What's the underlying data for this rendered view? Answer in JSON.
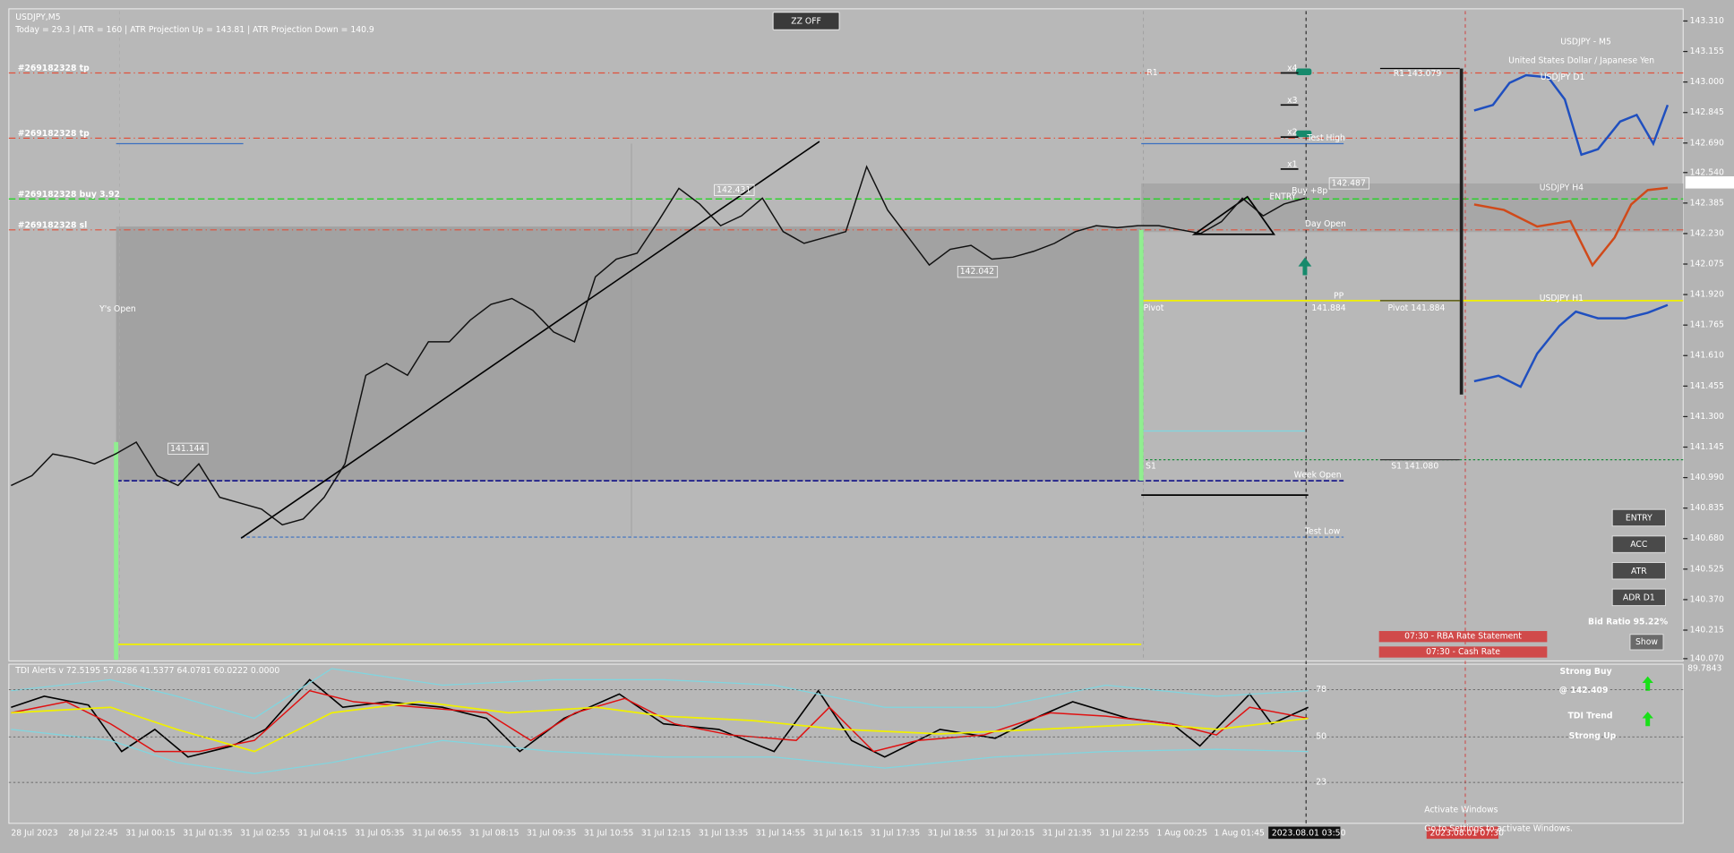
{
  "header": {
    "symbol": "USDJPY,M5",
    "stats": "Today = 29.3   |   ATR = 160   |   ATR Projection Up = 143.81   |   ATR Projection Down = 140.9"
  },
  "buttons": {
    "zz": "ZZ OFF",
    "entry": "ENTRY",
    "acc": "ACC",
    "atr": "ATR",
    "adr": "ADR D1",
    "show": "Show"
  },
  "orders": [
    "#269182328 tp",
    "#269182328 tp",
    "#269182328 buy 3.92",
    "#269182328 sl"
  ],
  "labels": {
    "ys_open": "Y's Open",
    "pivot": "Pivot",
    "s1": "S1",
    "r1": "R1",
    "test_high": "Test High",
    "test_low": "Test Low",
    "week_open": "Week Open",
    "day_open": "Day Open",
    "pp": "PP",
    "pp_value": "141.884",
    "entry": "ENTRY",
    "buy": "Buy +8p",
    "bid_price": "142.487",
    "low_tag": "141.144",
    "high_tag": "142.431",
    "mid_tag": "142.042"
  },
  "multipliers": [
    "x4",
    "x3",
    "x2",
    "x1"
  ],
  "panel": {
    "title": "USDJPY - M5",
    "subtitle": "United States Dollar / Japanese Yen",
    "d1": "USDJPY D1",
    "h4": "USDJPY H4",
    "h1": "USDJPY H1",
    "r1": "R1 143.079",
    "pivot": "Pivot 141.884",
    "s1": "S1 141.080",
    "bid_ratio": "Bid Ratio 95.22%"
  },
  "news": [
    "07:30 - RBA Rate Statement",
    "07:30 - Cash Rate"
  ],
  "indicator": {
    "title": "TDI Alerts v 72.5195 57.0286 41.5377 64.0781 60.0222 0.0000",
    "levels": [
      78,
      50,
      23
    ],
    "axis_top": "89.7843",
    "signal": "Strong Buy",
    "signal_price": "@ 142.409",
    "trend": "TDI Trend",
    "trend_state": "Strong Up"
  },
  "price_axis": {
    "ylim": [
      140.07,
      143.31
    ],
    "ticks": [
      {
        "value": 143.31,
        "label": "143.310"
      },
      143.155,
      {
        "value": 143.0,
        "label": "143.000"
      },
      142.845,
      {
        "value": 142.69,
        "label": "142.690"
      },
      {
        "value": 142.54,
        "label": "142.540"
      },
      142.385,
      {
        "value": 142.23,
        "label": "142.230"
      },
      142.075,
      {
        "value": 141.92,
        "label": "141.920"
      },
      141.765,
      {
        "value": 141.61,
        "label": "141.610"
      },
      141.455,
      {
        "value": 141.3,
        "label": "141.300"
      },
      141.145,
      {
        "value": 140.99,
        "label": "140.990"
      },
      140.835,
      {
        "value": 140.68,
        "label": "140.680"
      },
      140.525,
      {
        "value": 140.37,
        "label": "140.370"
      },
      140.215,
      {
        "value": 140.07,
        "label": "140.070"
      }
    ],
    "current": "142.487"
  },
  "time_axis": {
    "labels": [
      "28 Jul 2023",
      "28 Jul 22:45",
      "31 Jul 00:15",
      "31 Jul 01:35",
      "31 Jul 02:55",
      "31 Jul 04:15",
      "31 Jul 05:35",
      "31 Jul 06:55",
      "31 Jul 08:15",
      "31 Jul 09:35",
      "31 Jul 10:55",
      "31 Jul 12:15",
      "31 Jul 13:35",
      "31 Jul 14:55",
      "31 Jul 16:15",
      "31 Jul 17:35",
      "31 Jul 18:55",
      "31 Jul 20:15",
      "31 Jul 21:35",
      "31 Jul 22:55",
      "1 Aug 00:25",
      "1 Aug 01:45"
    ],
    "cursor": "2023.08.01 03:50",
    "event": "2023.08.01 07:30"
  },
  "price_path": [
    140.95,
    141.0,
    141.11,
    141.09,
    141.06,
    141.11,
    141.17,
    141.0,
    140.95,
    141.06,
    140.89,
    140.86,
    140.83,
    140.75,
    140.78,
    140.89,
    141.06,
    141.51,
    141.57,
    141.51,
    141.68,
    141.68,
    141.79,
    141.87,
    141.9,
    141.84,
    141.73,
    141.68,
    142.01,
    142.1,
    142.13,
    142.29,
    142.46,
    142.38,
    142.27,
    142.32,
    142.41,
    142.24,
    142.18,
    142.21,
    142.24,
    142.57,
    142.35,
    142.21,
    142.07,
    142.15,
    142.17,
    142.1,
    142.11,
    142.14,
    142.18,
    142.24,
    142.27,
    142.26,
    142.27,
    142.27,
    142.25,
    142.23,
    142.29,
    142.41,
    142.32,
    142.38,
    142.41
  ],
  "watermark": {
    "title": "Activate Windows",
    "text": "Go to Settings to activate Windows."
  }
}
